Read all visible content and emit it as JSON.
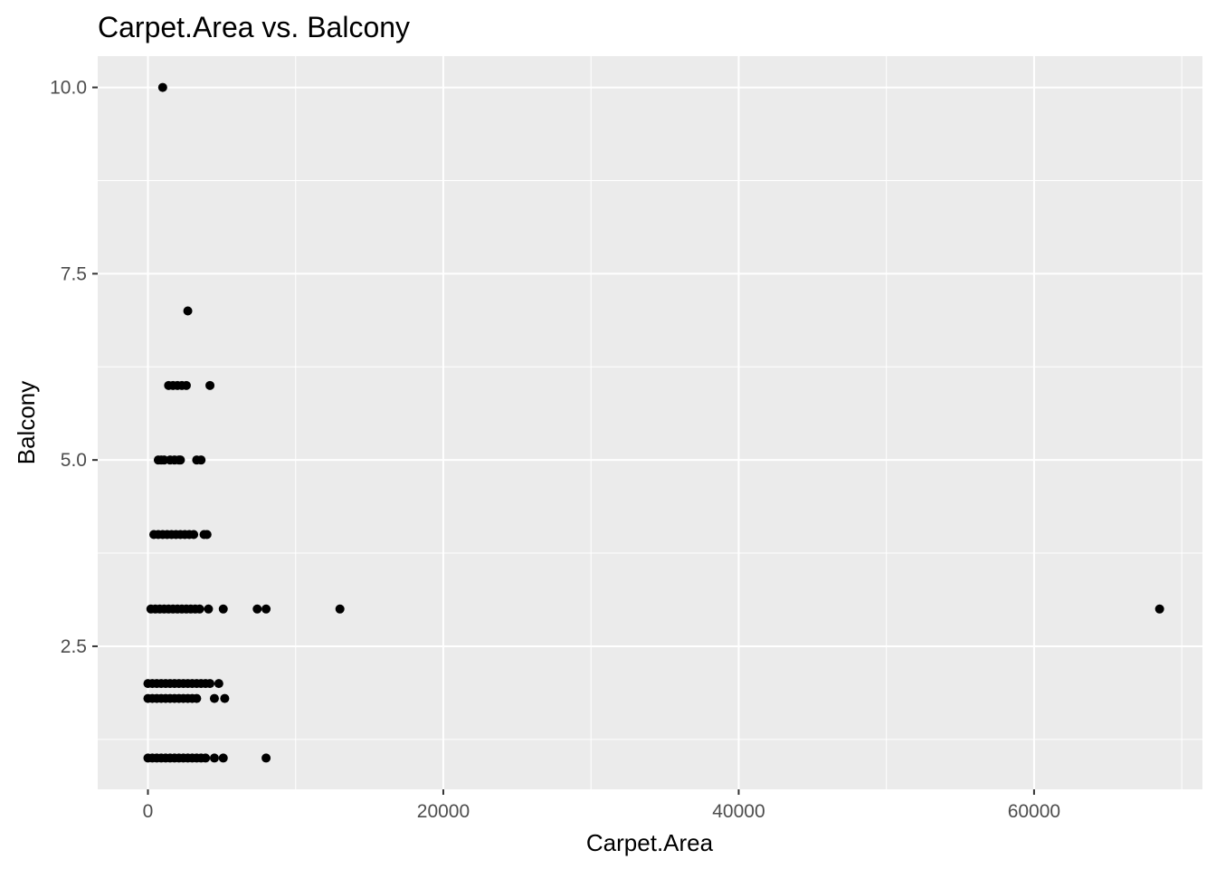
{
  "chart_data": {
    "type": "scatter",
    "title": "Carpet.Area vs. Balcony",
    "xlabel": "Carpet.Area",
    "ylabel": "Balcony",
    "xlim": [
      -3400,
      71400
    ],
    "ylim": [
      0.58,
      10.42
    ],
    "x_ticks": [
      0,
      20000,
      40000,
      60000
    ],
    "x_tick_labels": [
      "0",
      "20000",
      "40000",
      "60000"
    ],
    "y_ticks": [
      2.5,
      5.0,
      7.5,
      10.0
    ],
    "y_tick_labels": [
      "2.5",
      "5.0",
      "7.5",
      "10.0"
    ],
    "grid": true,
    "panel_background": "#ebebeb",
    "grid_color": "#ffffff",
    "point_color": "#000000",
    "points": [
      {
        "x": 1000,
        "y": 10
      },
      {
        "x": 2700,
        "y": 7
      },
      {
        "x": 1400,
        "y": 6
      },
      {
        "x": 1700,
        "y": 6
      },
      {
        "x": 2000,
        "y": 6
      },
      {
        "x": 2300,
        "y": 6
      },
      {
        "x": 2600,
        "y": 6
      },
      {
        "x": 4200,
        "y": 6
      },
      {
        "x": 700,
        "y": 5
      },
      {
        "x": 900,
        "y": 5
      },
      {
        "x": 1100,
        "y": 5
      },
      {
        "x": 1500,
        "y": 5
      },
      {
        "x": 1800,
        "y": 5
      },
      {
        "x": 2100,
        "y": 5
      },
      {
        "x": 2200,
        "y": 5
      },
      {
        "x": 3300,
        "y": 5
      },
      {
        "x": 3600,
        "y": 5
      },
      {
        "x": 400,
        "y": 4
      },
      {
        "x": 700,
        "y": 4
      },
      {
        "x": 1000,
        "y": 4
      },
      {
        "x": 1300,
        "y": 4
      },
      {
        "x": 1600,
        "y": 4
      },
      {
        "x": 1900,
        "y": 4
      },
      {
        "x": 2200,
        "y": 4
      },
      {
        "x": 2500,
        "y": 4
      },
      {
        "x": 2800,
        "y": 4
      },
      {
        "x": 3100,
        "y": 4
      },
      {
        "x": 3800,
        "y": 4
      },
      {
        "x": 4000,
        "y": 4
      },
      {
        "x": 200,
        "y": 3
      },
      {
        "x": 500,
        "y": 3
      },
      {
        "x": 800,
        "y": 3
      },
      {
        "x": 1100,
        "y": 3
      },
      {
        "x": 1400,
        "y": 3
      },
      {
        "x": 1700,
        "y": 3
      },
      {
        "x": 2000,
        "y": 3
      },
      {
        "x": 2300,
        "y": 3
      },
      {
        "x": 2600,
        "y": 3
      },
      {
        "x": 2900,
        "y": 3
      },
      {
        "x": 3200,
        "y": 3
      },
      {
        "x": 3500,
        "y": 3
      },
      {
        "x": 4100,
        "y": 3
      },
      {
        "x": 5100,
        "y": 3
      },
      {
        "x": 7400,
        "y": 3
      },
      {
        "x": 8000,
        "y": 3
      },
      {
        "x": 13000,
        "y": 3
      },
      {
        "x": 68500,
        "y": 3
      },
      {
        "x": 0,
        "y": 2
      },
      {
        "x": 300,
        "y": 2
      },
      {
        "x": 600,
        "y": 2
      },
      {
        "x": 900,
        "y": 2
      },
      {
        "x": 1200,
        "y": 2
      },
      {
        "x": 1500,
        "y": 2
      },
      {
        "x": 1800,
        "y": 2
      },
      {
        "x": 2100,
        "y": 2
      },
      {
        "x": 2400,
        "y": 2
      },
      {
        "x": 2700,
        "y": 2
      },
      {
        "x": 3000,
        "y": 2
      },
      {
        "x": 3300,
        "y": 2
      },
      {
        "x": 3600,
        "y": 2
      },
      {
        "x": 3900,
        "y": 2
      },
      {
        "x": 4200,
        "y": 2
      },
      {
        "x": 4800,
        "y": 2
      },
      {
        "x": 0,
        "y": 1.8
      },
      {
        "x": 300,
        "y": 1.8
      },
      {
        "x": 600,
        "y": 1.8
      },
      {
        "x": 900,
        "y": 1.8
      },
      {
        "x": 1200,
        "y": 1.8
      },
      {
        "x": 1500,
        "y": 1.8
      },
      {
        "x": 1800,
        "y": 1.8
      },
      {
        "x": 2100,
        "y": 1.8
      },
      {
        "x": 2400,
        "y": 1.8
      },
      {
        "x": 2700,
        "y": 1.8
      },
      {
        "x": 3000,
        "y": 1.8
      },
      {
        "x": 3300,
        "y": 1.8
      },
      {
        "x": 4500,
        "y": 1.8
      },
      {
        "x": 5200,
        "y": 1.8
      },
      {
        "x": 0,
        "y": 1
      },
      {
        "x": 300,
        "y": 1
      },
      {
        "x": 600,
        "y": 1
      },
      {
        "x": 900,
        "y": 1
      },
      {
        "x": 1200,
        "y": 1
      },
      {
        "x": 1500,
        "y": 1
      },
      {
        "x": 1800,
        "y": 1
      },
      {
        "x": 2100,
        "y": 1
      },
      {
        "x": 2400,
        "y": 1
      },
      {
        "x": 2700,
        "y": 1
      },
      {
        "x": 3000,
        "y": 1
      },
      {
        "x": 3300,
        "y": 1
      },
      {
        "x": 3600,
        "y": 1
      },
      {
        "x": 3900,
        "y": 1
      },
      {
        "x": 4500,
        "y": 1
      },
      {
        "x": 5100,
        "y": 1
      },
      {
        "x": 8000,
        "y": 1
      }
    ]
  }
}
